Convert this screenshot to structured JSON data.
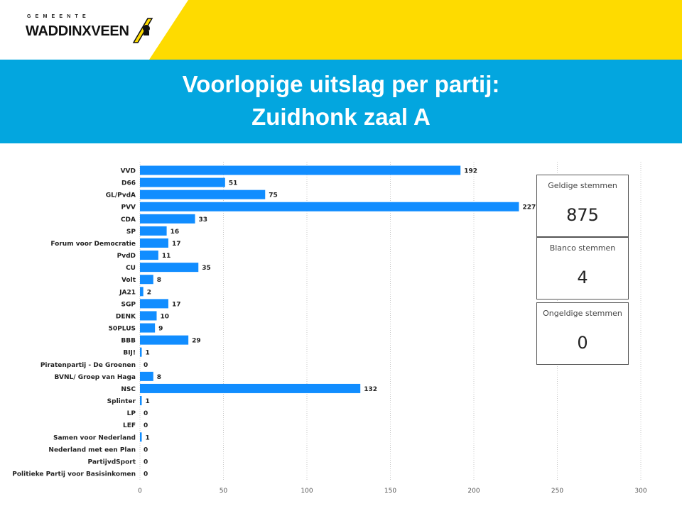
{
  "logo": {
    "subtitle": "GEMEENTE",
    "name": "WADDINXVEEN"
  },
  "colors": {
    "yellow": "#fedb00",
    "blue": "#03a6df",
    "bar": "#118dff",
    "label_dark": "#222222"
  },
  "title": {
    "line1": "Voorlopige uitslag per partij:",
    "line2": "Zuidhonk zaal A"
  },
  "chart_data": {
    "type": "bar",
    "orientation": "horizontal",
    "categories": [
      "VVD",
      "D66",
      "GL/PvdA",
      "PVV",
      "CDA",
      "SP",
      "Forum voor Democratie",
      "PvdD",
      "CU",
      "Volt",
      "JA21",
      "SGP",
      "DENK",
      "50PLUS",
      "BBB",
      "BIJ!",
      "Piratenpartij - De Groenen",
      "BVNL/ Groep van Haga",
      "NSC",
      "Splinter",
      "LP",
      "LEF",
      "Samen voor Nederland",
      "Nederland met een Plan",
      "PartijvdSport",
      "Politieke Partij voor Basisinkomen"
    ],
    "values": [
      192,
      51,
      75,
      227,
      33,
      16,
      17,
      11,
      35,
      8,
      2,
      17,
      10,
      9,
      29,
      1,
      0,
      8,
      132,
      1,
      0,
      0,
      1,
      0,
      0,
      0
    ],
    "xlim": [
      0,
      300
    ],
    "xticks": [
      0,
      50,
      100,
      150,
      200,
      250,
      300
    ],
    "grid": true,
    "data_labels": true
  },
  "cards": [
    {
      "label": "Geldige stemmen",
      "value": "875"
    },
    {
      "label": "Blanco stemmen",
      "value": "4"
    },
    {
      "label": "Ongeldige stemmen",
      "value": "0"
    }
  ]
}
